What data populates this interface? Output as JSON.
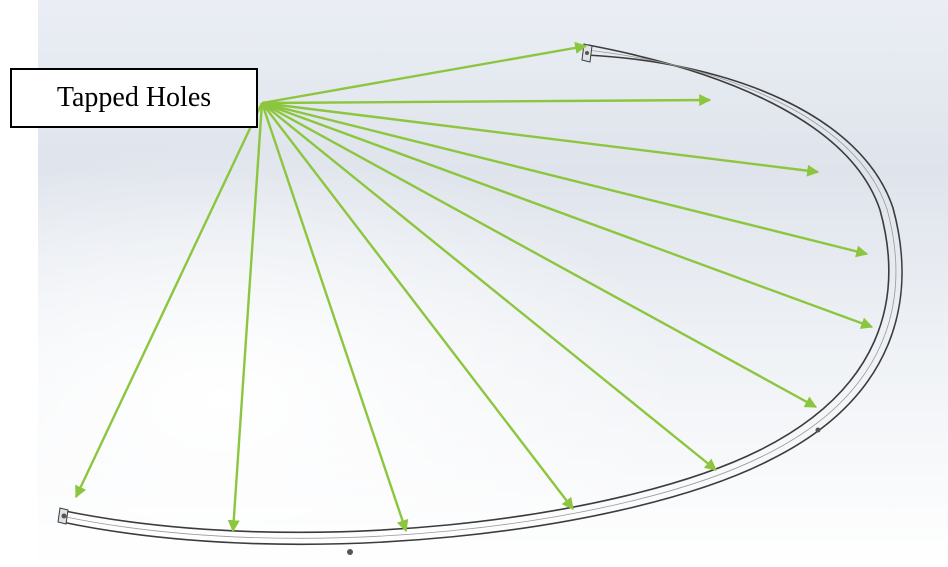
{
  "callout": {
    "label": "Tapped Holes"
  },
  "colors": {
    "arrow": "#8cc63f",
    "rail_stroke": "#3c3c3c",
    "rail_fill": "#f4f5f7"
  },
  "hole_count": 12
}
